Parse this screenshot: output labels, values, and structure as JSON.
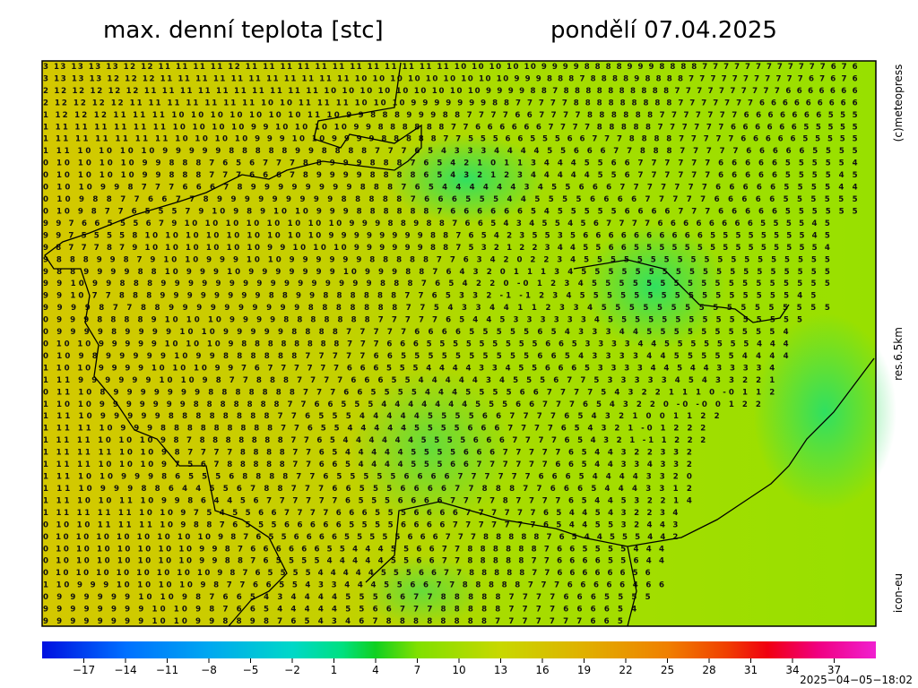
{
  "header": {
    "title": "max. denní teplota [stc]",
    "date": "pondělí 07.04.2025"
  },
  "side": {
    "copyright": "(c)meteopress",
    "resolution": "res.6.5km",
    "model": "icon-eu"
  },
  "map": {
    "rows": [
      "3 13 13 13 13 12 12 11 11 11 11 12 11 11 11 11 11 11 11 11 11 11 11 11 10 10 10 10 10 9 9 9 9 8 8 8 8 9 9 9 8 8 8 8 7 7 7 7 7 7 7 7 7 7 7 7 6 7 6",
      "3 13 13 13 12 12 12 11 11 11 11 11 11 11 11 11 11 11 10 10 10 10 10 10 10 10 10 9 9 9 8 8 8 7 8 8 8 8 9 8 8 8 8 7 7 7 7 7 7 7 7 7 7 7 6 7 6 7 6",
      "2 12 12 12 12 12 11 11 11 11 11 11 11 11 11 11 10 10 10 10 10 10 10 10 10 9 9 9 9 8 8 7 8 8 8 8 8 8 8 8 8 8 7 7 7 7 7 7 7 7 7 7 6 6 6 6 6 6 6",
      "2 12 12 12 12 11 11 11 11 11 11 11 10 10 11 11 11 10 10 10 9 9 9 9 9 9 9 8 8 7 7 7 7 7 8 8 8 8 8 8 8 8 8 7 7 7 7 7 7 7 6 6 6 6 6 6 6 6 6",
      "1 12 12 12 11 11 11 10 10 10 10 10 10 10 11 10 9 9 8 8 8 9 9 9 8 8 7 7 7 7 6 6 7 7 7 7 8 8 8 8 8 8 7 7 7 7 7 7 7 6 6 6 6 6 6 6 5 5 5",
      "1 11 11 11 11 11 11 10 10 10 10 9 9 10 10 10 10 9 9 8 8 8 8 8 8 7 7 6 6 6 6 6 6 7 7 7 7 8 8 8 8 8 7 7 7 7 7 7 6 6 6 6 6 6 5 5 5 5 5",
      "1 11 11 11 11 11 11 10 10 10 10 9 9 9 10 10 9 9 9 9 8 8 8 8 8 7 7 5 5 5 6 6 5 5 5 6 6 7 7 7 8 8 8 8 7 7 7 7 7 6 6 6 6 6 5 5 5 5 5",
      "1 11 10 10 10 10 9 9 9 9 9 8 8 8 8 8 9 9 8 8 8 8 7 7 7 6 5 4 3 3 3 4 4 4 4 5 5 6 6 6 7 7 8 8 8 7 7 7 7 7 6 6 6 6 6 5 5 5 5",
      "0 10 10 10 10 9 9 8 8 8 7 6 5 6 7 7 7 8 8 9 9 9 8 8 8 7 6 5 4 2 1 0 1 1 3 4 4 4 5 5 6 6 7 7 7 7 7 7 6 6 6 6 6 5 5 5 5 5 4",
      "0 10 10 10 10 9 9 8 8 8 7 7 7 6 6 6 7 8 9 9 9 9 8 8 8 8 6 5 4 3 2 1 2 3 4 4 4 4 4 5 5 6 7 7 7 7 7 7 6 6 6 6 6 5 5 5 5 4 5",
      "0 10 10 9 9 8 7 7 7 6 6 6 7 8 9 9 9 9 9 9 9 9 8 8 8 7 6 5 4 4 4 4 4 4 3 4 5 5 6 6 6 7 7 7 7 7 7 7 6 6 6 6 6 5 5 5 5 4 4",
      "0 10 9 8 8 7 7 6 6 7 7 8 9 9 9 9 9 9 9 9 9 8 8 8 8 8 7 6 6 6 5 5 5 4 4 5 5 5 5 6 6 6 6 7 7 7 7 7 6 6 6 6 6 5 5 5 5 5 5",
      "0 10 9 8 7 7 6 5 5 5 7 9 10 9 8 9 10 10 9 9 9 8 8 8 8 8 8 7 6 6 6 6 6 6 5 4 5 5 5 5 5 6 6 6 6 7 7 7 6 6 6 6 6 5 5 5 5 5 5",
      "9 9 7 6 6 5 5 5 6 7 9 10 10 10 10 10 10 10 10 9 9 9 8 8 9 8 8 7 6 6 5 4 3 4 5 5 4 5 6 7 7 7 7 6 6 6 6 6 6 6 6 5 5 5 5 4 5",
      "9 9 7 5 5 5 5 8 10 10 10 10 10 10 10 10 10 9 9 9 9 9 9 9 9 8 8 7 6 5 4 2 3 5 5 3 5 6 6 6 6 6 6 6 6 6 6 5 5 5 5 5 5 5 5 4 5",
      "9 8 7 7 7 8 7 9 10 10 10 10 10 10 9 9 10 10 10 9 9 9 9 9 9 8 8 7 5 3 2 1 2 2 3 4 4 5 5 6 6 5 5 5 5 5 5 5 5 5 5 5 5 5 5 5 4",
      "9 8 8 8 9 9 8 7 9 10 10 9 9 9 10 10 9 9 9 9 9 9 8 8 8 8 8 7 7 6 3 4 2 0 2 2 3 4 5 5 5 5 5 5 5 5 5 5 5 5 5 5 5 5 5 5 5",
      "9 8 8 9 9 9 9 8 8 10 9 9 9 10 9 9 9 9 9 9 9 10 9 9 9 8 8 7 6 4 3 2 0 1 1 1 3 4 5 5 5 5 5 5 5 5 5 5 5 5 5 5 5 5 5 5 5",
      "9 9 10 9 9 8 8 8 9 9 9 9 9 9 9 9 9 9 9 9 9 9 9 9 8 8 8 7 6 5 4 2 2 0 -0 1 2 3 4 5 5 5 5 5 5 5 5 5 5 5 5 5 5 5 5 5 5",
      "9 9 10 7 7 8 8 8 9 9 9 9 9 9 9 9 8 8 9 9 8 8 8 8 8 8 7 7 6 5 3 3 2 -1 -1 2 3 4 5 5 5 5 5 5 5 5 5 5 5 5 5 5 5 5 4 5",
      "9 9 9 9 8 7 7 8 8 9 9 9 9 9 9 9 9 9 9 8 8 8 8 8 8 8 7 7 5 4 3 3 4 4 1 1 2 3 3 4 5 5 5 5 5 5 5 5 5 5 5 5 5 5 5 5 5",
      "0 9 9 9 8 8 8 8 9 10 10 10 9 9 9 9 8 8 8 8 8 8 8 7 7 7 7 7 6 5 4 4 5 3 3 3 3 3 3 4 5 5 5 5 5 5 5 5 5 5 5 5 5 5 5",
      "0 9 9 9 9 8 9 9 9 9 10 10 9 9 9 9 9 8 8 8 8 7 7 7 7 7 6 6 6 6 5 5 5 5 5 6 5 4 3 3 3 4 4 5 5 5 5 5 5 5 5 5 5 4",
      "0 10 10 9 9 9 9 9 10 10 10 9 8 8 8 8 8 8 8 8 7 7 7 6 6 6 5 5 5 5 5 5 5 5 5 6 6 5 3 3 3 3 4 4 5 5 5 5 5 5 5 4 4 4",
      "0 10 9 8 9 9 9 9 9 10 9 9 8 8 8 8 8 8 7 7 7 7 7 6 6 5 5 5 5 5 5 5 5 5 5 6 6 5 4 3 3 3 3 4 4 5 5 5 5 5 4 4 4 4",
      "1 10 10 9 9 9 9 10 10 10 9 9 7 6 7 7 7 7 7 7 6 6 6 5 5 5 4 4 4 4 3 3 4 5 5 6 6 6 5 3 3 3 3 4 4 5 4 4 3 3 3 3 4",
      "1 11 9 9 9 9 9 9 10 10 9 8 7 7 8 8 8 7 7 7 7 6 6 6 5 5 4 4 4 4 4 3 4 5 5 5 6 7 7 5 3 3 3 3 3 4 5 4 3 3 2 2 1",
      "0 11 10 8 9 9 9 9 9 9 9 8 8 8 8 8 8 8 7 7 7 6 6 5 5 5 5 4 4 4 5 5 5 5 6 6 7 7 7 7 5 4 3 2 2 1 1 1 0 -0 1 1 2",
      "1 10 10 9 9 9 9 9 9 9 8 8 8 8 8 8 8 7 7 6 6 5 5 5 4 4 4 4 4 4 4 5 5 5 6 6 7 7 7 6 5 4 3 2 2 0 -0 -0 0 1 2 2",
      "1 11 10 9 9 9 9 9 8 8 8 8 8 8 8 8 7 7 6 5 5 5 4 4 4 4 4 5 5 5 5 6 6 7 7 7 7 6 5 4 3 2 1 0 0 1 1 2 2",
      "1 11 11 10 9 9 9 8 8 8 8 8 8 8 8 8 7 7 6 5 5 4 4 4 4 4 5 5 5 5 6 6 6 7 7 7 7 6 5 4 3 2 1 -0 1 2 2 2",
      "1 11 11 10 10 10 9 8 7 8 8 8 8 8 8 8 7 7 6 5 4 4 4 4 4 4 5 5 5 5 6 6 6 7 7 7 7 6 5 4 3 2 1 -1 1 2 2 2",
      "1 11 11 11 10 10 9 8 7 7 7 7 8 8 8 8 7 7 6 5 4 4 4 4 4 5 5 5 5 6 6 6 7 7 7 7 7 6 5 4 4 3 2 2 3 3 2",
      "1 11 11 10 10 10 9 7 5 6 7 8 8 8 8 8 7 7 6 6 5 4 4 4 4 5 5 5 6 6 7 7 7 7 7 7 6 6 5 4 4 3 3 4 3 3 2",
      "1 11 10 10 9 9 9 8 6 5 5 5 6 8 8 8 8 7 7 6 5 5 5 5 5 6 6 6 6 7 7 7 7 7 7 6 6 6 5 4 4 4 4 3 3 2 0",
      "1 11 10 9 9 9 8 8 6 4 4 5 5 6 7 8 8 7 7 7 6 6 5 5 5 6 6 6 6 7 7 8 8 8 7 7 6 6 6 5 4 4 4 3 3 1 2",
      "1 11 10 10 11 10 9 9 8 6 4 4 5 6 7 7 7 7 7 7 6 5 5 5 6 6 6 6 7 7 7 7 8 7 7 7 7 6 5 4 4 5 3 2 2 1 4",
      "1 11 11 11 11 10 10 9 7 5 4 5 5 6 6 7 7 7 7 6 6 6 5 5 5 6 6 6 6 7 7 7 7 7 7 6 5 4 4 5 4 3 2 2 3 4",
      "0 10 10 11 11 11 10 9 8 8 7 6 5 5 5 6 6 6 6 6 5 5 5 5 6 6 6 6 7 7 7 7 7 7 7 6 5 4 4 5 5 3 2 4 4 3",
      "0 10 10 10 10 10 10 10 10 9 8 7 6 5 5 6 6 6 6 5 5 5 5 5 6 6 6 7 7 7 8 8 8 8 8 7 6 5 4 4 5 5 5 4 4 2",
      "0 10 10 10 10 10 10 10 9 9 8 7 6 6 6 6 6 6 5 5 4 4 4 5 5 6 6 7 7 8 8 8 8 8 8 7 6 6 5 5 5 5 4 4 4",
      "0 10 10 10 10 10 10 10 9 9 8 8 7 6 5 5 5 5 4 4 4 4 4 5 5 6 6 7 7 8 8 8 8 8 7 7 6 6 6 6 5 5 6 4 4",
      "0 10 10 10 10 10 10 10 10 9 8 7 6 5 5 5 5 4 4 4 4 4 5 5 5 6 6 7 7 8 8 8 8 8 7 7 6 6 6 6 6 6 5 6",
      "1 10 9 9 9 10 10 10 10 9 8 7 7 6 6 5 5 4 3 3 4 4 4 5 5 6 6 7 7 8 8 8 8 8 7 7 7 6 6 6 6 6 4 6 6",
      "0 9 9 9 9 9 9 10 10 9 8 7 6 6 5 4 3 4 4 4 4 5 5 5 6 6 7 7 8 8 8 8 8 7 7 7 7 6 6 6 5 5 5 5",
      "9 9 9 9 9 9 9 9 10 10 9 8 7 6 6 5 4 4 4 4 4 5 5 6 6 7 7 7 8 8 8 8 8 7 7 7 7 6 6 6 6 5 4",
      "9 9 9 9 9 9 9 9 10 10 9 9 8 8 9 8 7 6 5 4 3 4 6 7 8 8 8 8 8 8 8 8 7 7 7 7 7 7 7 6 6 5"
    ]
  },
  "colorbar": {
    "lim": [
      -20,
      40
    ],
    "ticks": [
      {
        "value": -17,
        "label": "−17"
      },
      {
        "value": -14,
        "label": "−14"
      },
      {
        "value": -11,
        "label": "−11"
      },
      {
        "value": -8,
        "label": "−8"
      },
      {
        "value": -5,
        "label": "−5"
      },
      {
        "value": -2,
        "label": "−2"
      },
      1,
      4,
      7,
      10,
      13,
      16,
      19,
      22,
      25,
      28,
      31,
      34,
      37
    ]
  },
  "footer": {
    "timestamp": "2025−04−05−18:02"
  }
}
